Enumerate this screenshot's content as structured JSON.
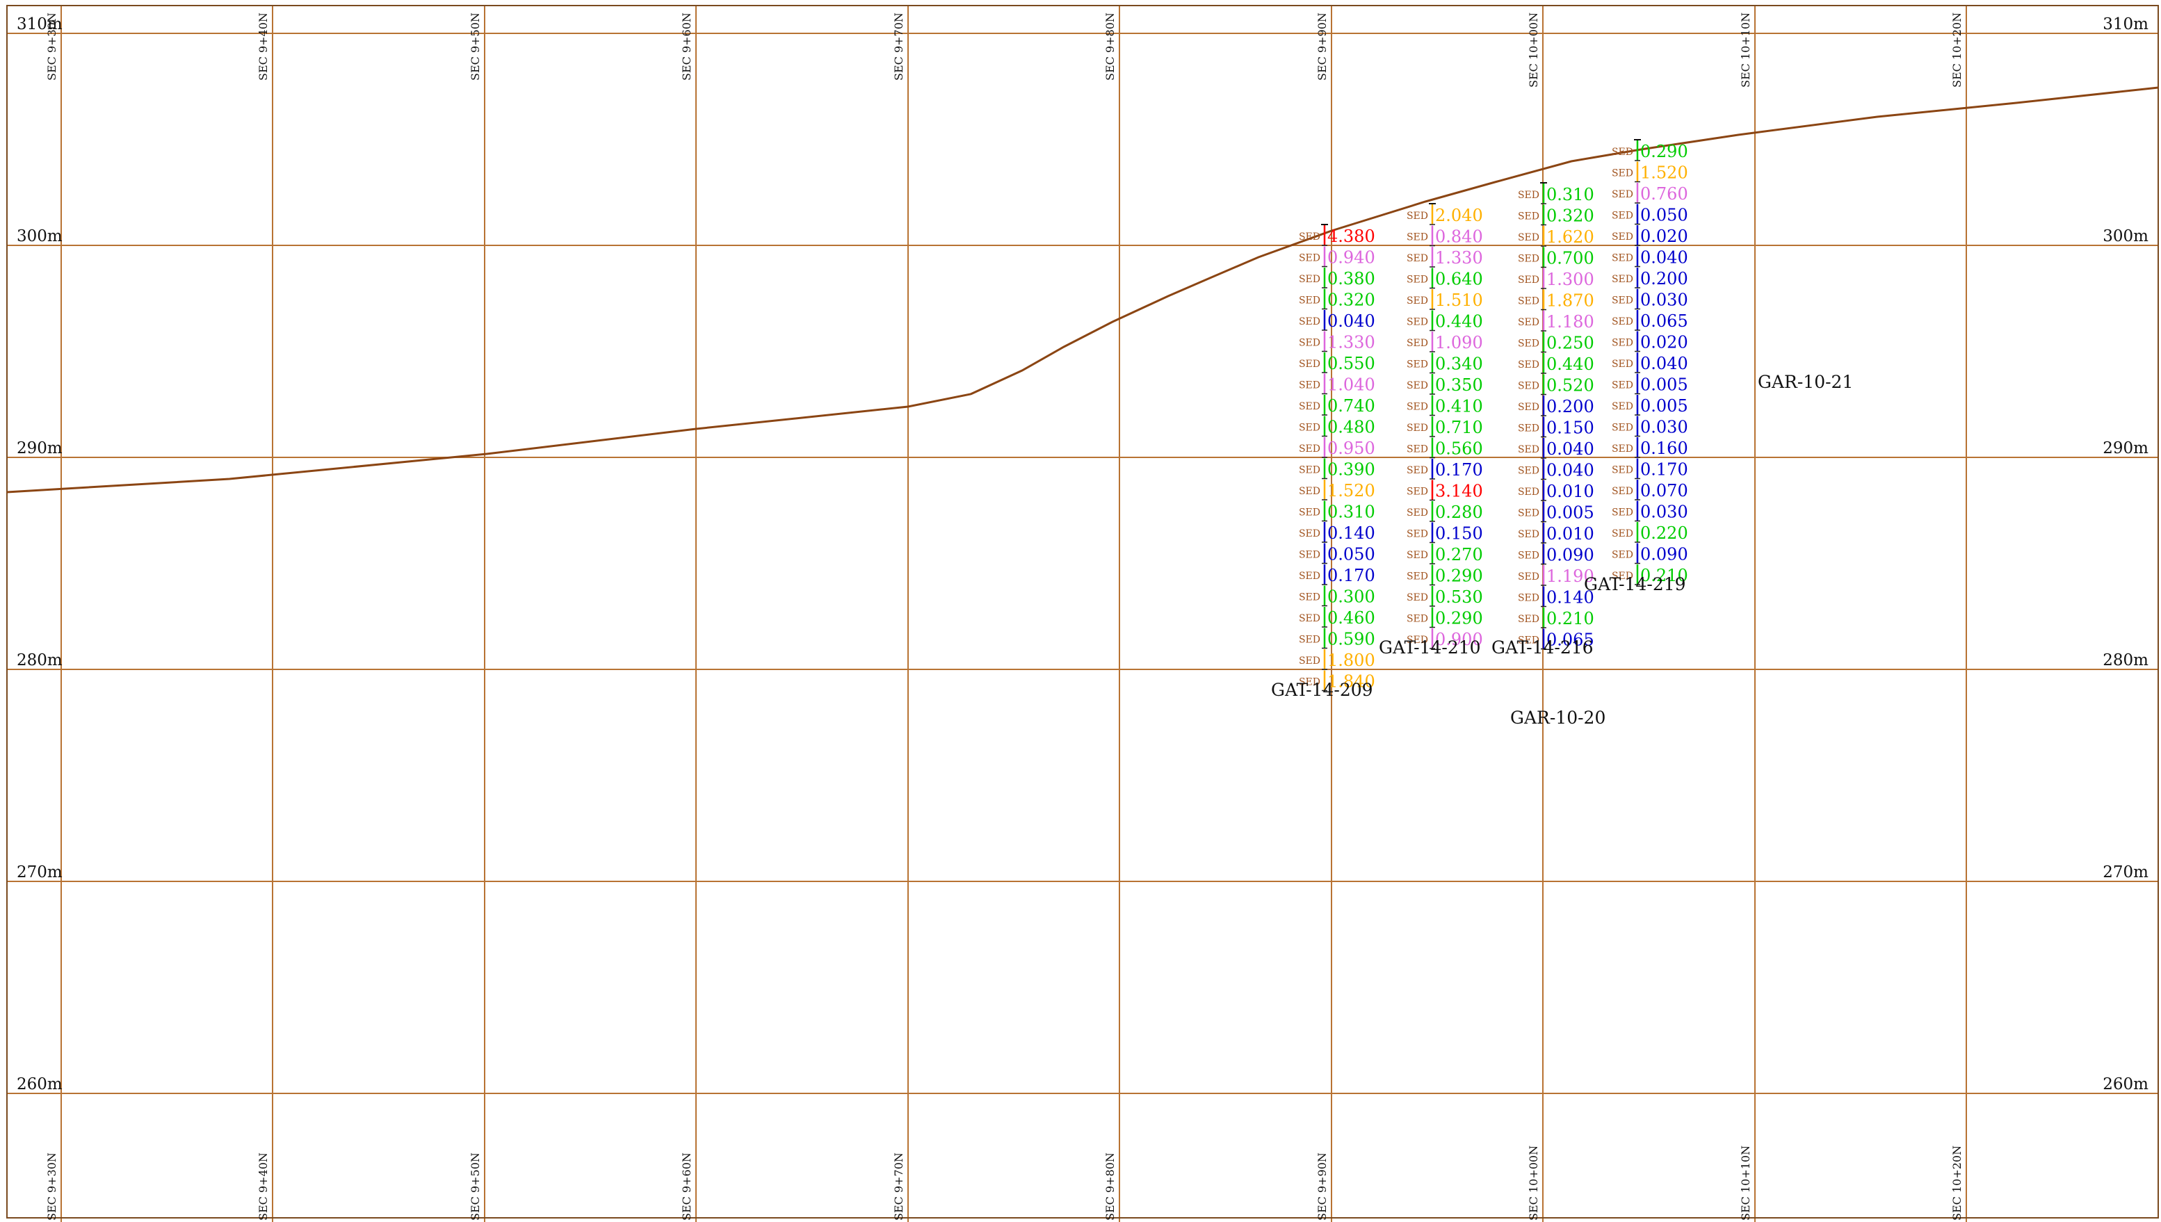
{
  "elevations": [
    "310m",
    "300m",
    "290m",
    "280m",
    "270m",
    "260m"
  ],
  "sections": [
    "SEC 9+30N",
    "SEC 9+40N",
    "SEC 9+50N",
    "SEC 9+60N",
    "SEC 9+70N",
    "SEC 9+80N",
    "SEC 9+90N",
    "SEC 10+00N",
    "SEC 10+10N",
    "SEC 10+20N"
  ],
  "sample_tag": "SED",
  "colors": {
    "grid": "#b87333",
    "topography": "#8b4513",
    "sed_tag": "#a0521d",
    "red": "#ff0000",
    "orange": "#ffb000",
    "violet": "#dd66dd",
    "green": "#00cc00",
    "blue": "#0000cc"
  },
  "holes": [
    {
      "name": "GAT-14-209",
      "samples": [
        {
          "v": "4.380",
          "c": "red"
        },
        {
          "v": "0.940",
          "c": "violet"
        },
        {
          "v": "0.380",
          "c": "green"
        },
        {
          "v": "0.320",
          "c": "green"
        },
        {
          "v": "0.040",
          "c": "blue"
        },
        {
          "v": "1.330",
          "c": "violet"
        },
        {
          "v": "0.550",
          "c": "green"
        },
        {
          "v": "1.040",
          "c": "violet"
        },
        {
          "v": "0.740",
          "c": "green"
        },
        {
          "v": "0.480",
          "c": "green"
        },
        {
          "v": "0.950",
          "c": "violet"
        },
        {
          "v": "0.390",
          "c": "green"
        },
        {
          "v": "1.520",
          "c": "orange"
        },
        {
          "v": "0.310",
          "c": "green"
        },
        {
          "v": "0.140",
          "c": "blue"
        },
        {
          "v": "0.050",
          "c": "blue"
        },
        {
          "v": "0.170",
          "c": "blue"
        },
        {
          "v": "0.300",
          "c": "green"
        },
        {
          "v": "0.460",
          "c": "green"
        },
        {
          "v": "0.590",
          "c": "green"
        },
        {
          "v": "1.800",
          "c": "orange"
        },
        {
          "v": "1.840",
          "c": "orange"
        }
      ]
    },
    {
      "name": "GAT-14-210",
      "samples": [
        {
          "v": "2.040",
          "c": "orange"
        },
        {
          "v": "0.840",
          "c": "violet"
        },
        {
          "v": "1.330",
          "c": "violet"
        },
        {
          "v": "0.640",
          "c": "green"
        },
        {
          "v": "1.510",
          "c": "orange"
        },
        {
          "v": "0.440",
          "c": "green"
        },
        {
          "v": "1.090",
          "c": "violet"
        },
        {
          "v": "0.340",
          "c": "green"
        },
        {
          "v": "0.350",
          "c": "green"
        },
        {
          "v": "0.410",
          "c": "green"
        },
        {
          "v": "0.710",
          "c": "green"
        },
        {
          "v": "0.560",
          "c": "green"
        },
        {
          "v": "0.170",
          "c": "blue"
        },
        {
          "v": "3.140",
          "c": "red"
        },
        {
          "v": "0.280",
          "c": "green"
        },
        {
          "v": "0.150",
          "c": "blue"
        },
        {
          "v": "0.270",
          "c": "green"
        },
        {
          "v": "0.290",
          "c": "green"
        },
        {
          "v": "0.530",
          "c": "green"
        },
        {
          "v": "0.290",
          "c": "green"
        },
        {
          "v": "0.900",
          "c": "violet"
        }
      ]
    },
    {
      "name": "GAT-14-216",
      "samples": [
        {
          "v": "0.310",
          "c": "green"
        },
        {
          "v": "0.320",
          "c": "green"
        },
        {
          "v": "1.620",
          "c": "orange"
        },
        {
          "v": "0.700",
          "c": "green"
        },
        {
          "v": "1.300",
          "c": "violet"
        },
        {
          "v": "1.870",
          "c": "orange"
        },
        {
          "v": "1.180",
          "c": "violet"
        },
        {
          "v": "0.250",
          "c": "green"
        },
        {
          "v": "0.440",
          "c": "green"
        },
        {
          "v": "0.520",
          "c": "green"
        },
        {
          "v": "0.200",
          "c": "blue"
        },
        {
          "v": "0.150",
          "c": "blue"
        },
        {
          "v": "0.040",
          "c": "blue"
        },
        {
          "v": "0.040",
          "c": "blue"
        },
        {
          "v": "0.010",
          "c": "blue"
        },
        {
          "v": "0.005",
          "c": "blue"
        },
        {
          "v": "0.010",
          "c": "blue"
        },
        {
          "v": "0.090",
          "c": "blue"
        },
        {
          "v": "1.190",
          "c": "violet"
        },
        {
          "v": "0.140",
          "c": "blue"
        },
        {
          "v": "0.210",
          "c": "green"
        },
        {
          "v": "0.065",
          "c": "blue"
        }
      ]
    },
    {
      "name": "GAT-14-219",
      "samples": [
        {
          "v": "0.290",
          "c": "green"
        },
        {
          "v": "1.520",
          "c": "orange"
        },
        {
          "v": "0.760",
          "c": "violet"
        },
        {
          "v": "0.050",
          "c": "blue"
        },
        {
          "v": "0.020",
          "c": "blue"
        },
        {
          "v": "0.040",
          "c": "blue"
        },
        {
          "v": "0.200",
          "c": "blue"
        },
        {
          "v": "0.030",
          "c": "blue"
        },
        {
          "v": "0.065",
          "c": "blue"
        },
        {
          "v": "0.020",
          "c": "blue"
        },
        {
          "v": "0.040",
          "c": "blue"
        },
        {
          "v": "0.005",
          "c": "blue"
        },
        {
          "v": "0.005",
          "c": "blue"
        },
        {
          "v": "0.030",
          "c": "blue"
        },
        {
          "v": "0.160",
          "c": "blue"
        },
        {
          "v": "0.170",
          "c": "blue"
        },
        {
          "v": "0.070",
          "c": "blue"
        },
        {
          "v": "0.030",
          "c": "blue"
        },
        {
          "v": "0.220",
          "c": "green"
        },
        {
          "v": "0.090",
          "c": "blue"
        },
        {
          "v": "0.210",
          "c": "green"
        }
      ]
    }
  ],
  "other_holes": [
    "GAR-10-20",
    "GAR-10-21"
  ]
}
